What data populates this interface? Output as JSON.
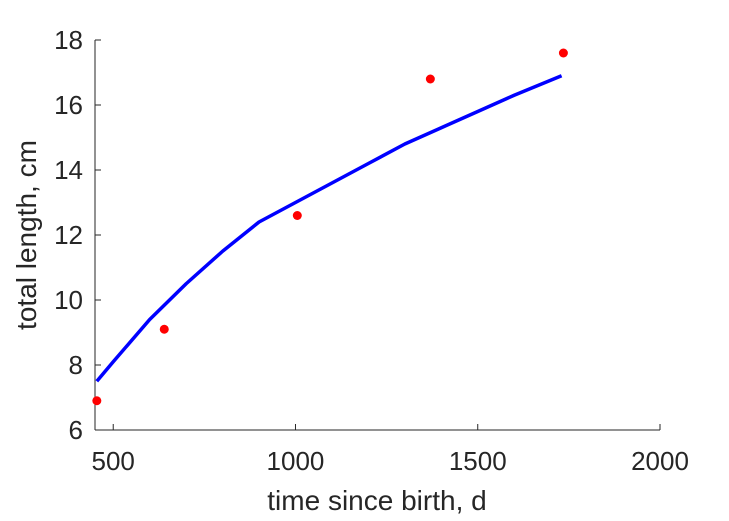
{
  "chart_data": {
    "type": "scatter",
    "title": "",
    "xlabel": "time since birth, d",
    "ylabel": "total length, cm",
    "xlim": [
      450,
      2000
    ],
    "ylim": [
      6,
      18
    ],
    "xticks": [
      500,
      1000,
      1500,
      2000
    ],
    "yticks": [
      6,
      8,
      10,
      12,
      14,
      16,
      18
    ],
    "grid": false,
    "legend": "none",
    "series": [
      {
        "kind": "scatter",
        "color": "#ff0000",
        "x": [
          455,
          640,
          1005,
          1370,
          1735
        ],
        "y": [
          6.9,
          9.1,
          12.6,
          16.8,
          17.6
        ]
      },
      {
        "kind": "line",
        "color": "#0000ff",
        "x": [
          455,
          500,
          600,
          700,
          800,
          900,
          1000,
          1100,
          1200,
          1300,
          1400,
          1500,
          1600,
          1730
        ],
        "y": [
          7.5,
          8.1,
          9.4,
          10.5,
          11.5,
          12.4,
          13.0,
          13.6,
          14.2,
          14.8,
          15.3,
          15.8,
          16.3,
          16.9
        ]
      }
    ]
  }
}
